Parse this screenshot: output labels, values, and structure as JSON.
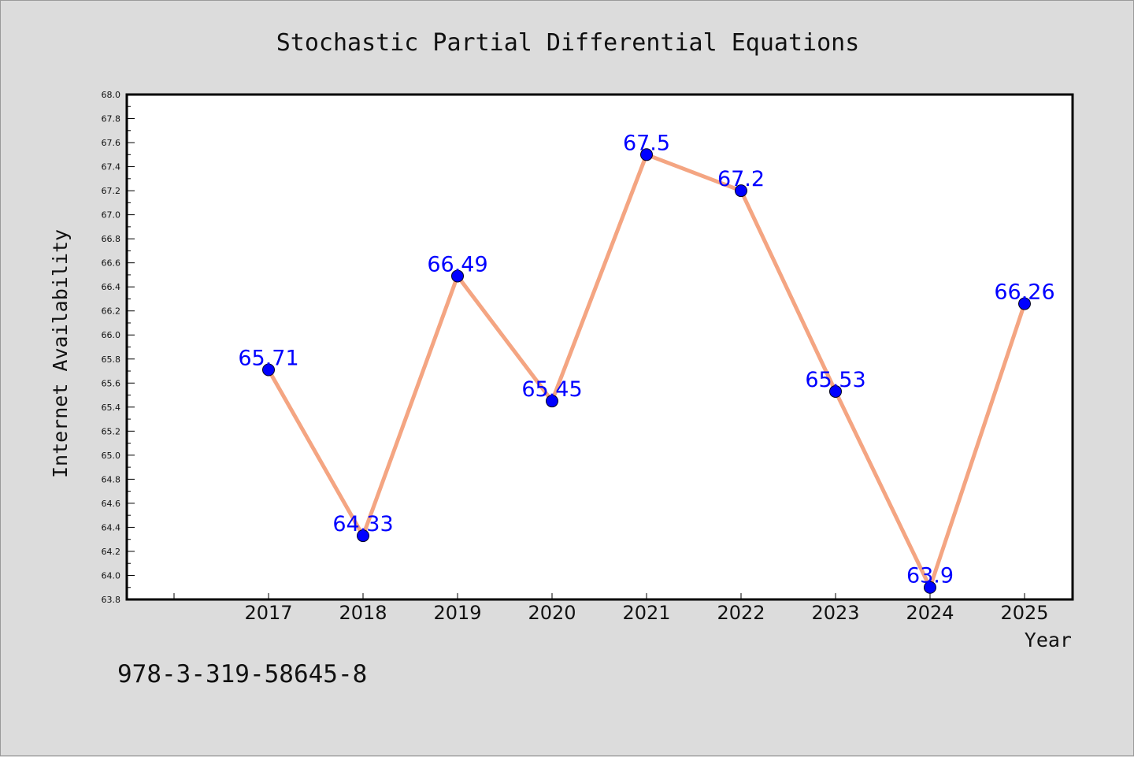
{
  "chart_data": {
    "type": "line",
    "title": "Stochastic Partial Differential Equations",
    "xlabel": "Year",
    "ylabel": "Internet Availability",
    "x": [
      "2017",
      "2018",
      "2019",
      "2020",
      "2021",
      "2022",
      "2023",
      "2024",
      "2025"
    ],
    "series": [
      {
        "values": [
          65.71,
          64.33,
          66.49,
          65.45,
          67.5,
          67.2,
          65.53,
          63.9,
          66.26
        ],
        "data_labels": [
          "65.71",
          "64.33",
          "66.49",
          "65.45",
          "67.5",
          "67.2",
          "65.53",
          "63.9",
          "66.26"
        ],
        "line_color": "#f4a582",
        "marker_color": "#0000ff",
        "label_color": "#0000ff"
      }
    ],
    "ylim": [
      63.8,
      68.0
    ],
    "yticks": [
      "63.8",
      "64.0",
      "64.2",
      "64.4",
      "64.6",
      "64.8",
      "65.0",
      "65.2",
      "65.4",
      "65.6",
      "65.8",
      "66.0",
      "66.2",
      "66.4",
      "66.6",
      "66.8",
      "67.0",
      "67.2",
      "67.4",
      "67.6",
      "67.8",
      "68.0"
    ],
    "grid": false,
    "legend": "none"
  },
  "footnote": "978-3-319-58645-8",
  "colors": {
    "background": "#dcdcdc",
    "plot_background": "#ffffff"
  }
}
